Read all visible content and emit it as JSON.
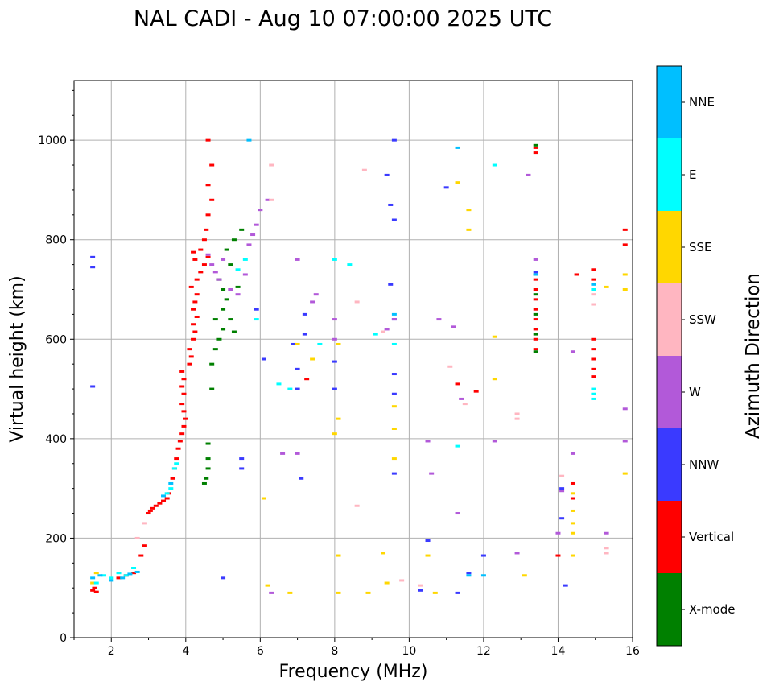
{
  "chart_data": {
    "type": "scatter",
    "title": "NAL CADI - Aug 10 07:00:00 2025 UTC",
    "xlabel": "Frequency (MHz)",
    "ylabel": "Virtual height (km)",
    "xlim": [
      1,
      16
    ],
    "ylim": [
      0,
      1120
    ],
    "xticks": [
      2,
      4,
      6,
      8,
      10,
      12,
      14,
      16
    ],
    "yticks": [
      0,
      200,
      400,
      600,
      800,
      1000
    ],
    "grid": true,
    "colorbar": {
      "title": "Azimuth Direction",
      "categories": [
        {
          "name": "X-mode",
          "color": "#008000"
        },
        {
          "name": "Vertical",
          "color": "#ff0000"
        },
        {
          "name": "NNW",
          "color": "#3a3aff"
        },
        {
          "name": "W",
          "color": "#b259d9"
        },
        {
          "name": "SSW",
          "color": "#ffb6c1"
        },
        {
          "name": "SSE",
          "color": "#ffd700"
        },
        {
          "name": "E",
          "color": "#00ffff"
        },
        {
          "name": "NNE",
          "color": "#00bfff"
        }
      ]
    },
    "series": [
      {
        "name": "Vertical",
        "points": [
          [
            1.5,
            95
          ],
          [
            1.55,
            100
          ],
          [
            1.6,
            92
          ],
          [
            2.2,
            120
          ],
          [
            2.4,
            125
          ],
          [
            2.6,
            130
          ],
          [
            2.8,
            165
          ],
          [
            2.9,
            185
          ],
          [
            3.0,
            250
          ],
          [
            3.05,
            255
          ],
          [
            3.1,
            260
          ],
          [
            3.2,
            265
          ],
          [
            3.3,
            270
          ],
          [
            3.4,
            275
          ],
          [
            3.5,
            280
          ],
          [
            3.55,
            290
          ],
          [
            3.65,
            320
          ],
          [
            3.7,
            340
          ],
          [
            3.75,
            360
          ],
          [
            3.8,
            380
          ],
          [
            3.85,
            395
          ],
          [
            3.9,
            410
          ],
          [
            3.95,
            425
          ],
          [
            4.0,
            440
          ],
          [
            3.95,
            455
          ],
          [
            3.9,
            470
          ],
          [
            3.95,
            490
          ],
          [
            3.9,
            505
          ],
          [
            3.95,
            520
          ],
          [
            3.9,
            535
          ],
          [
            4.1,
            550
          ],
          [
            4.15,
            565
          ],
          [
            4.1,
            580
          ],
          [
            4.2,
            600
          ],
          [
            4.25,
            615
          ],
          [
            4.2,
            630
          ],
          [
            4.3,
            645
          ],
          [
            4.2,
            660
          ],
          [
            4.25,
            675
          ],
          [
            4.3,
            690
          ],
          [
            4.15,
            705
          ],
          [
            4.3,
            720
          ],
          [
            4.4,
            735
          ],
          [
            4.5,
            750
          ],
          [
            4.6,
            765
          ],
          [
            4.4,
            780
          ],
          [
            4.5,
            800
          ],
          [
            4.55,
            820
          ],
          [
            4.6,
            850
          ],
          [
            4.7,
            880
          ],
          [
            4.6,
            910
          ],
          [
            4.7,
            950
          ],
          [
            4.6,
            1000
          ],
          [
            4.2,
            775
          ],
          [
            4.25,
            760
          ],
          [
            13.4,
            975
          ],
          [
            13.4,
            985
          ],
          [
            13.4,
            720
          ],
          [
            13.4,
            700
          ],
          [
            13.4,
            680
          ],
          [
            13.4,
            660
          ],
          [
            13.4,
            640
          ],
          [
            13.4,
            620
          ],
          [
            13.4,
            600
          ],
          [
            13.4,
            580
          ],
          [
            14.0,
            165
          ],
          [
            14.4,
            310
          ],
          [
            14.4,
            280
          ],
          [
            14.5,
            730
          ],
          [
            14.95,
            740
          ],
          [
            14.95,
            720
          ],
          [
            14.95,
            600
          ],
          [
            14.95,
            580
          ],
          [
            14.95,
            560
          ],
          [
            14.95,
            540
          ],
          [
            14.95,
            525
          ],
          [
            11.3,
            510
          ],
          [
            11.8,
            495
          ],
          [
            7.25,
            520
          ],
          [
            15.8,
            820
          ],
          [
            15.8,
            790
          ]
        ]
      },
      {
        "name": "X-mode",
        "points": [
          [
            4.5,
            310
          ],
          [
            4.55,
            320
          ],
          [
            4.6,
            340
          ],
          [
            4.6,
            360
          ],
          [
            4.6,
            390
          ],
          [
            4.7,
            500
          ],
          [
            4.7,
            550
          ],
          [
            4.8,
            580
          ],
          [
            4.9,
            600
          ],
          [
            5.0,
            620
          ],
          [
            4.8,
            640
          ],
          [
            5.0,
            660
          ],
          [
            5.1,
            680
          ],
          [
            5.0,
            700
          ],
          [
            4.9,
            720
          ],
          [
            5.2,
            750
          ],
          [
            5.1,
            780
          ],
          [
            5.3,
            800
          ],
          [
            5.2,
            640
          ],
          [
            5.3,
            615
          ],
          [
            5.4,
            705
          ],
          [
            5.5,
            820
          ],
          [
            13.4,
            610
          ],
          [
            13.4,
            650
          ],
          [
            13.4,
            690
          ],
          [
            13.4,
            730
          ],
          [
            13.4,
            575
          ],
          [
            13.4,
            990
          ]
        ]
      },
      {
        "name": "NNW",
        "points": [
          [
            1.5,
            765
          ],
          [
            1.5,
            745
          ],
          [
            1.5,
            505
          ],
          [
            5.0,
            120
          ],
          [
            5.5,
            340
          ],
          [
            5.5,
            360
          ],
          [
            5.9,
            660
          ],
          [
            6.1,
            560
          ],
          [
            6.9,
            590
          ],
          [
            7.0,
            540
          ],
          [
            7.0,
            500
          ],
          [
            7.1,
            320
          ],
          [
            7.2,
            650
          ],
          [
            7.2,
            610
          ],
          [
            8.0,
            555
          ],
          [
            8.0,
            500
          ],
          [
            9.4,
            930
          ],
          [
            9.5,
            870
          ],
          [
            9.6,
            840
          ],
          [
            9.5,
            710
          ],
          [
            9.6,
            640
          ],
          [
            9.6,
            530
          ],
          [
            9.6,
            490
          ],
          [
            9.6,
            330
          ],
          [
            9.6,
            1000
          ],
          [
            10.3,
            95
          ],
          [
            10.5,
            195
          ],
          [
            11.0,
            905
          ],
          [
            11.3,
            90
          ],
          [
            11.6,
            130
          ],
          [
            12.0,
            165
          ],
          [
            13.4,
            735
          ],
          [
            14.1,
            300
          ],
          [
            14.1,
            240
          ],
          [
            14.2,
            105
          ]
        ]
      },
      {
        "name": "W",
        "points": [
          [
            4.6,
            770
          ],
          [
            4.7,
            750
          ],
          [
            4.8,
            735
          ],
          [
            4.9,
            720
          ],
          [
            5.0,
            760
          ],
          [
            5.2,
            700
          ],
          [
            5.4,
            690
          ],
          [
            5.6,
            730
          ],
          [
            5.7,
            790
          ],
          [
            5.8,
            810
          ],
          [
            5.9,
            830
          ],
          [
            6.0,
            860
          ],
          [
            6.2,
            880
          ],
          [
            6.3,
            90
          ],
          [
            6.6,
            370
          ],
          [
            7.0,
            370
          ],
          [
            7.0,
            760
          ],
          [
            7.4,
            675
          ],
          [
            7.5,
            690
          ],
          [
            8.0,
            640
          ],
          [
            8.0,
            600
          ],
          [
            9.4,
            620
          ],
          [
            9.6,
            640
          ],
          [
            10.5,
            395
          ],
          [
            10.6,
            330
          ],
          [
            10.8,
            640
          ],
          [
            11.2,
            625
          ],
          [
            11.3,
            250
          ],
          [
            11.4,
            480
          ],
          [
            12.3,
            395
          ],
          [
            12.9,
            170
          ],
          [
            13.2,
            930
          ],
          [
            13.4,
            760
          ],
          [
            14.0,
            210
          ],
          [
            14.1,
            295
          ],
          [
            14.4,
            370
          ],
          [
            14.4,
            575
          ],
          [
            15.3,
            210
          ],
          [
            15.8,
            395
          ],
          [
            15.8,
            460
          ]
        ]
      },
      {
        "name": "SSW",
        "points": [
          [
            2.7,
            200
          ],
          [
            2.9,
            230
          ],
          [
            6.3,
            880
          ],
          [
            6.3,
            950
          ],
          [
            8.6,
            265
          ],
          [
            8.6,
            675
          ],
          [
            8.8,
            940
          ],
          [
            9.3,
            615
          ],
          [
            9.8,
            115
          ],
          [
            10.3,
            105
          ],
          [
            11.1,
            545
          ],
          [
            11.5,
            470
          ],
          [
            12.9,
            440
          ],
          [
            12.9,
            450
          ],
          [
            14.1,
            325
          ],
          [
            14.95,
            690
          ],
          [
            14.95,
            670
          ],
          [
            15.3,
            180
          ],
          [
            15.3,
            170
          ]
        ]
      },
      {
        "name": "SSE",
        "points": [
          [
            1.5,
            110
          ],
          [
            1.6,
            130
          ],
          [
            6.1,
            280
          ],
          [
            6.2,
            105
          ],
          [
            6.8,
            90
          ],
          [
            7.0,
            590
          ],
          [
            7.4,
            560
          ],
          [
            8.0,
            410
          ],
          [
            8.1,
            440
          ],
          [
            8.1,
            590
          ],
          [
            8.1,
            165
          ],
          [
            8.1,
            90
          ],
          [
            8.9,
            90
          ],
          [
            9.3,
            170
          ],
          [
            9.4,
            110
          ],
          [
            9.6,
            360
          ],
          [
            9.6,
            420
          ],
          [
            9.6,
            465
          ],
          [
            10.5,
            165
          ],
          [
            10.7,
            90
          ],
          [
            11.3,
            915
          ],
          [
            11.6,
            820
          ],
          [
            11.6,
            860
          ],
          [
            12.3,
            605
          ],
          [
            12.3,
            520
          ],
          [
            13.1,
            125
          ],
          [
            14.4,
            290
          ],
          [
            14.4,
            255
          ],
          [
            14.4,
            230
          ],
          [
            14.4,
            210
          ],
          [
            14.4,
            165
          ],
          [
            15.3,
            705
          ],
          [
            15.8,
            700
          ],
          [
            15.8,
            730
          ],
          [
            15.8,
            330
          ]
        ]
      },
      {
        "name": "E",
        "points": [
          [
            1.6,
            110
          ],
          [
            1.8,
            125
          ],
          [
            2.0,
            120
          ],
          [
            2.2,
            130
          ],
          [
            2.4,
            125
          ],
          [
            2.6,
            140
          ],
          [
            3.5,
            290
          ],
          [
            3.6,
            300
          ],
          [
            3.7,
            340
          ],
          [
            3.75,
            350
          ],
          [
            5.4,
            740
          ],
          [
            5.6,
            760
          ],
          [
            5.9,
            640
          ],
          [
            6.5,
            510
          ],
          [
            6.8,
            500
          ],
          [
            7.6,
            590
          ],
          [
            8.0,
            760
          ],
          [
            8.4,
            750
          ],
          [
            9.1,
            610
          ],
          [
            9.6,
            590
          ],
          [
            11.3,
            385
          ],
          [
            12.3,
            950
          ],
          [
            14.95,
            500
          ],
          [
            14.95,
            490
          ],
          [
            14.95,
            480
          ],
          [
            14.95,
            700
          ]
        ]
      },
      {
        "name": "NNE",
        "points": [
          [
            1.5,
            120
          ],
          [
            1.7,
            125
          ],
          [
            2.0,
            115
          ],
          [
            2.3,
            120
          ],
          [
            2.5,
            128
          ],
          [
            2.7,
            132
          ],
          [
            3.4,
            285
          ],
          [
            3.6,
            310
          ],
          [
            5.7,
            1000
          ],
          [
            9.6,
            650
          ],
          [
            11.3,
            985
          ],
          [
            11.6,
            125
          ],
          [
            12.0,
            125
          ],
          [
            13.4,
            730
          ],
          [
            14.95,
            710
          ]
        ]
      }
    ]
  }
}
